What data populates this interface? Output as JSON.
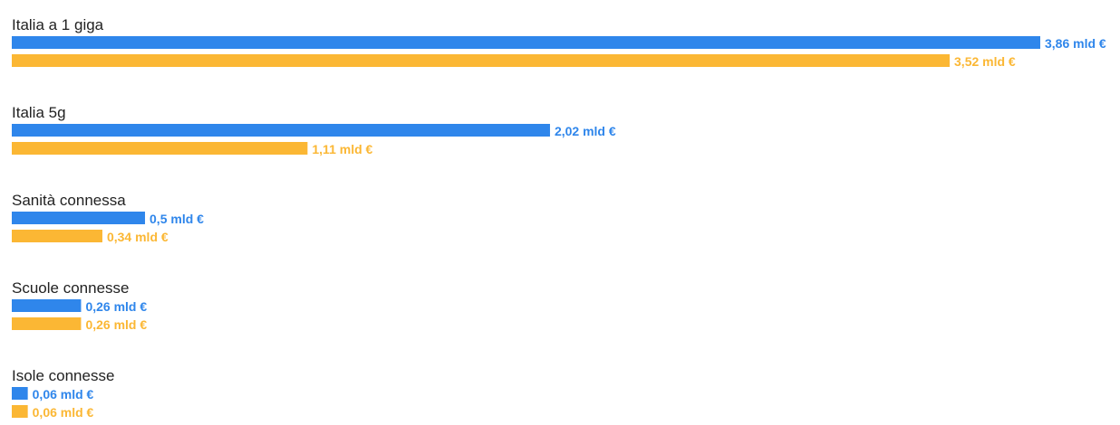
{
  "colors": {
    "series_a": "#2f86eb",
    "series_b": "#fbb734"
  },
  "chart_data": {
    "type": "bar",
    "orientation": "horizontal",
    "title": "",
    "xlabel": "",
    "ylabel": "",
    "xlim": [
      0,
      4
    ],
    "grid": false,
    "legend": "none",
    "categories": [
      "Italia a 1 giga",
      "Italia 5g",
      "Sanità connessa",
      "Scuole connesse",
      "Isole connesse"
    ],
    "series": [
      {
        "color": "#2f86eb",
        "values": [
          3.86,
          2.02,
          0.5,
          0.26,
          0.06
        ],
        "labels": [
          "3,86 mld €",
          "2,02 mld €",
          "0,5 mld €",
          "0,26 mld €",
          "0,06 mld €"
        ]
      },
      {
        "color": "#fbb734",
        "values": [
          3.52,
          1.11,
          0.34,
          0.26,
          0.06
        ],
        "labels": [
          "3,52 mld €",
          "1,11 mld €",
          "0,34 mld €",
          "0,26 mld €",
          "0,06 mld €"
        ]
      }
    ]
  }
}
